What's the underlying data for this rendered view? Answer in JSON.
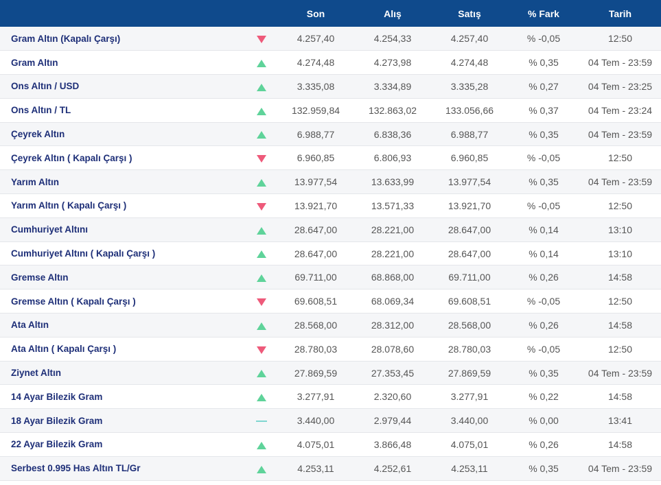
{
  "header": {
    "name": "",
    "direction": "",
    "son": "Son",
    "alis": "Alış",
    "satis": "Satış",
    "fark": "% Fark",
    "tarih": "Tarih"
  },
  "colors": {
    "header_bg": "#0f4a8c",
    "up": "#5fd39a",
    "down": "#ee5a7a",
    "flat": "#7fd6d0"
  },
  "rows": [
    {
      "name": "Gram Altın (Kapalı Çarşı)",
      "direction": "down",
      "son": "4.257,40",
      "alis": "4.254,33",
      "satis": "4.257,40",
      "fark": "% -0,05",
      "tarih": "12:50"
    },
    {
      "name": "Gram Altın",
      "direction": "up",
      "son": "4.274,48",
      "alis": "4.273,98",
      "satis": "4.274,48",
      "fark": "% 0,35",
      "tarih": "04 Tem - 23:59"
    },
    {
      "name": "Ons Altın / USD",
      "direction": "up",
      "son": "3.335,08",
      "alis": "3.334,89",
      "satis": "3.335,28",
      "fark": "% 0,27",
      "tarih": "04 Tem - 23:25"
    },
    {
      "name": "Ons Altın / TL",
      "direction": "up",
      "son": "132.959,84",
      "alis": "132.863,02",
      "satis": "133.056,66",
      "fark": "% 0,37",
      "tarih": "04 Tem - 23:24"
    },
    {
      "name": "Çeyrek Altın",
      "direction": "up",
      "son": "6.988,77",
      "alis": "6.838,36",
      "satis": "6.988,77",
      "fark": "% 0,35",
      "tarih": "04 Tem - 23:59"
    },
    {
      "name": "Çeyrek Altın ( Kapalı Çarşı )",
      "direction": "down",
      "son": "6.960,85",
      "alis": "6.806,93",
      "satis": "6.960,85",
      "fark": "% -0,05",
      "tarih": "12:50"
    },
    {
      "name": "Yarım Altın",
      "direction": "up",
      "son": "13.977,54",
      "alis": "13.633,99",
      "satis": "13.977,54",
      "fark": "% 0,35",
      "tarih": "04 Tem - 23:59"
    },
    {
      "name": "Yarım Altın ( Kapalı Çarşı )",
      "direction": "down",
      "son": "13.921,70",
      "alis": "13.571,33",
      "satis": "13.921,70",
      "fark": "% -0,05",
      "tarih": "12:50"
    },
    {
      "name": "Cumhuriyet Altını",
      "direction": "up",
      "son": "28.647,00",
      "alis": "28.221,00",
      "satis": "28.647,00",
      "fark": "% 0,14",
      "tarih": "13:10"
    },
    {
      "name": "Cumhuriyet Altını ( Kapalı Çarşı )",
      "direction": "up",
      "son": "28.647,00",
      "alis": "28.221,00",
      "satis": "28.647,00",
      "fark": "% 0,14",
      "tarih": "13:10"
    },
    {
      "name": "Gremse Altın",
      "direction": "up",
      "son": "69.711,00",
      "alis": "68.868,00",
      "satis": "69.711,00",
      "fark": "% 0,26",
      "tarih": "14:58"
    },
    {
      "name": "Gremse Altın ( Kapalı Çarşı )",
      "direction": "down",
      "son": "69.608,51",
      "alis": "68.069,34",
      "satis": "69.608,51",
      "fark": "% -0,05",
      "tarih": "12:50"
    },
    {
      "name": "Ata Altın",
      "direction": "up",
      "son": "28.568,00",
      "alis": "28.312,00",
      "satis": "28.568,00",
      "fark": "% 0,26",
      "tarih": "14:58"
    },
    {
      "name": "Ata Altın ( Kapalı Çarşı )",
      "direction": "down",
      "son": "28.780,03",
      "alis": "28.078,60",
      "satis": "28.780,03",
      "fark": "% -0,05",
      "tarih": "12:50"
    },
    {
      "name": "Ziynet Altın",
      "direction": "up",
      "son": "27.869,59",
      "alis": "27.353,45",
      "satis": "27.869,59",
      "fark": "% 0,35",
      "tarih": "04 Tem - 23:59"
    },
    {
      "name": "14 Ayar Bilezik Gram",
      "direction": "up",
      "son": "3.277,91",
      "alis": "2.320,60",
      "satis": "3.277,91",
      "fark": "% 0,22",
      "tarih": "14:58"
    },
    {
      "name": "18 Ayar Bilezik Gram",
      "direction": "flat",
      "son": "3.440,00",
      "alis": "2.979,44",
      "satis": "3.440,00",
      "fark": "% 0,00",
      "tarih": "13:41"
    },
    {
      "name": "22 Ayar Bilezik Gram",
      "direction": "up",
      "son": "4.075,01",
      "alis": "3.866,48",
      "satis": "4.075,01",
      "fark": "% 0,26",
      "tarih": "14:58"
    },
    {
      "name": "Serbest 0.995 Has Altın TL/Gr",
      "direction": "up",
      "son": "4.253,11",
      "alis": "4.252,61",
      "satis": "4.253,11",
      "fark": "% 0,35",
      "tarih": "04 Tem - 23:59"
    }
  ]
}
